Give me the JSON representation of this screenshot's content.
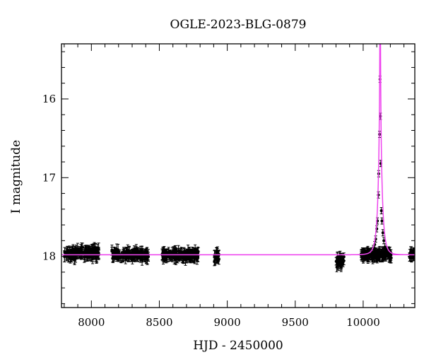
{
  "chart_data": {
    "type": "scatter",
    "title": "OGLE-2023-BLG-0879",
    "xlabel": "HJD - 2450000",
    "ylabel": "I magnitude",
    "xlim": [
      7780,
      10380
    ],
    "ylim": [
      18.65,
      15.3
    ],
    "y_inverted": true,
    "grid": false,
    "x_ticks": [
      8000,
      8500,
      9000,
      9500,
      10000
    ],
    "y_ticks": [
      16,
      17,
      18
    ],
    "series": [
      {
        "marker": "filled circles with error bars",
        "color": "#000000",
        "baseline_magnitude": 17.98,
        "typical_error": 0.06,
        "observing_seasons": [
          {
            "start": 7800,
            "end": 8060,
            "mean_mag": 17.96,
            "scatter": 0.05
          },
          {
            "start": 8150,
            "end": 8420,
            "mean_mag": 17.98,
            "scatter": 0.04
          },
          {
            "start": 8520,
            "end": 8790,
            "mean_mag": 17.98,
            "scatter": 0.04
          },
          {
            "start": 8900,
            "end": 8940,
            "mean_mag": 17.99,
            "scatter": 0.05
          },
          {
            "start": 9800,
            "end": 9860,
            "mean_mag": 18.06,
            "scatter": 0.07
          },
          {
            "start": 9985,
            "end": 10210,
            "mean_mag": 17.98,
            "scatter": 0.03
          },
          {
            "start": 10340,
            "end": 10380,
            "mean_mag": 17.98,
            "scatter": 0.03
          }
        ],
        "event_points": [
          {
            "x": 10060,
            "y": 17.93
          },
          {
            "x": 10075,
            "y": 17.9
          },
          {
            "x": 10085,
            "y": 17.85
          },
          {
            "x": 10092,
            "y": 17.78
          },
          {
            "x": 10100,
            "y": 17.65
          },
          {
            "x": 10105,
            "y": 17.55
          },
          {
            "x": 10112,
            "y": 17.22
          },
          {
            "x": 10114,
            "y": 16.95
          },
          {
            "x": 10120,
            "y": 16.45
          },
          {
            "x": 10124,
            "y": 15.75
          },
          {
            "x": 10127,
            "y": 16.22
          },
          {
            "x": 10130,
            "y": 16.82
          },
          {
            "x": 10134,
            "y": 17.42
          },
          {
            "x": 10138,
            "y": 17.55
          },
          {
            "x": 10145,
            "y": 17.7
          },
          {
            "x": 10152,
            "y": 17.8
          },
          {
            "x": 10160,
            "y": 17.88
          },
          {
            "x": 10170,
            "y": 17.92
          }
        ]
      }
    ],
    "model": {
      "type": "line",
      "color": "#ee44ee",
      "baseline": 17.98,
      "t0": 10125,
      "tE": 30,
      "u0": 0.0035
    }
  }
}
